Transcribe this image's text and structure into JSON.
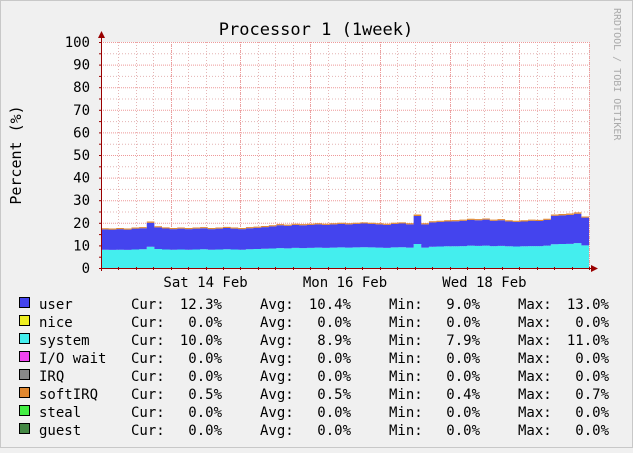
{
  "chart_data": {
    "type": "area",
    "title": "Processor 1  (1week)",
    "ylabel": "Percent (%)",
    "watermark": "RRDTOOL / TOBI OETIKER",
    "ylim": [
      0,
      100
    ],
    "y_ticks": [
      "0",
      "10",
      "20",
      "30",
      "40",
      "50",
      "60",
      "70",
      "80",
      "90",
      "100"
    ],
    "x_ticks": [
      "Sat 14 Feb",
      "Mon 16 Feb",
      "Wed 18 Feb"
    ],
    "grid": true,
    "legend_placement": "bottom",
    "stack_order": [
      "system",
      "user",
      "softIRQ"
    ],
    "series": [
      {
        "name": "user",
        "color": "#4444ee",
        "cur": "12.3%",
        "avg": "10.4%",
        "min": "9.0%",
        "max": "13.0%",
        "values": [
          9.0,
          9.0,
          9.1,
          9.0,
          9.2,
          9.3,
          10.6,
          9.6,
          9.3,
          9.1,
          9.2,
          9.1,
          9.2,
          9.3,
          9.1,
          9.2,
          9.4,
          9.2,
          9.1,
          9.3,
          9.4,
          9.6,
          9.8,
          10.1,
          10.0,
          10.2,
          10.1,
          10.2,
          10.3,
          10.2,
          10.3,
          10.4,
          10.3,
          10.4,
          10.5,
          10.4,
          10.3,
          10.2,
          10.4,
          10.5,
          10.3,
          12.4,
          10.3,
          10.8,
          10.9,
          11.0,
          11.1,
          11.2,
          11.4,
          11.3,
          11.5,
          11.2,
          11.3,
          11.0,
          10.9,
          11.0,
          11.2,
          11.1,
          11.4,
          12.6,
          12.7,
          12.8,
          13.0,
          12.3
        ]
      },
      {
        "name": "nice",
        "color": "#eeee22",
        "cur": "0.0%",
        "avg": "0.0%",
        "min": "0.0%",
        "max": "0.0%"
      },
      {
        "name": "system",
        "color": "#44eeee",
        "cur": "10.0%",
        "avg": "8.9%",
        "min": "7.9%",
        "max": "11.0%",
        "values": [
          8.1,
          8.0,
          8.1,
          8.0,
          8.2,
          8.3,
          9.4,
          8.4,
          8.2,
          8.1,
          8.2,
          8.1,
          8.2,
          8.3,
          8.1,
          8.2,
          8.3,
          8.2,
          8.1,
          8.3,
          8.4,
          8.5,
          8.6,
          8.8,
          8.7,
          8.9,
          8.8,
          8.9,
          9.0,
          8.9,
          9.0,
          9.1,
          9.0,
          9.1,
          9.2,
          9.1,
          9.0,
          8.9,
          9.1,
          9.2,
          9.0,
          10.6,
          9.0,
          9.4,
          9.5,
          9.6,
          9.6,
          9.7,
          9.9,
          9.8,
          9.9,
          9.7,
          9.8,
          9.6,
          9.5,
          9.6,
          9.7,
          9.7,
          9.9,
          10.5,
          10.6,
          10.7,
          11.0,
          10.0
        ]
      },
      {
        "name": "I/O wait",
        "color": "#ee44ee",
        "cur": "0.0%",
        "avg": "0.0%",
        "min": "0.0%",
        "max": "0.0%"
      },
      {
        "name": "IRQ",
        "color": "#888888",
        "cur": "0.0%",
        "avg": "0.0%",
        "min": "0.0%",
        "max": "0.0%"
      },
      {
        "name": "softIRQ",
        "color": "#e08830",
        "cur": "0.5%",
        "avg": "0.5%",
        "min": "0.4%",
        "max": "0.7%",
        "values": [
          0.5,
          0.5,
          0.5,
          0.5,
          0.5,
          0.5,
          0.6,
          0.5,
          0.5,
          0.5,
          0.5,
          0.5,
          0.5,
          0.5,
          0.5,
          0.5,
          0.5,
          0.5,
          0.5,
          0.5,
          0.5,
          0.5,
          0.5,
          0.5,
          0.5,
          0.5,
          0.5,
          0.5,
          0.5,
          0.5,
          0.5,
          0.5,
          0.5,
          0.5,
          0.5,
          0.5,
          0.5,
          0.5,
          0.5,
          0.5,
          0.5,
          0.7,
          0.5,
          0.5,
          0.5,
          0.5,
          0.5,
          0.5,
          0.5,
          0.5,
          0.5,
          0.5,
          0.5,
          0.5,
          0.5,
          0.5,
          0.5,
          0.5,
          0.5,
          0.6,
          0.6,
          0.6,
          0.6,
          0.5
        ]
      },
      {
        "name": "steal",
        "color": "#44ee44",
        "cur": "0.0%",
        "avg": "0.0%",
        "min": "0.0%",
        "max": "0.0%"
      },
      {
        "name": "guest",
        "color": "#448844",
        "cur": "0.0%",
        "avg": "0.0%",
        "min": "0.0%",
        "max": "0.0%"
      }
    ]
  },
  "legend_labels": {
    "cur": "Cur:",
    "avg": "Avg:",
    "min": "Min:",
    "max": "Max:"
  }
}
